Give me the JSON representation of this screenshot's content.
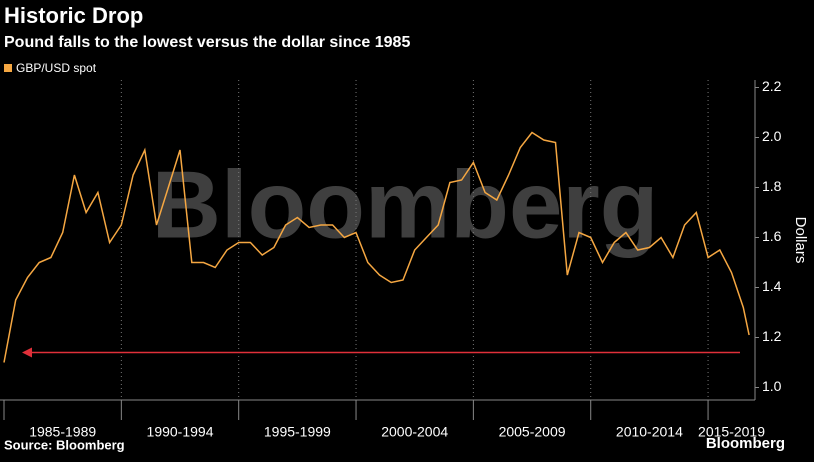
{
  "chart_data": {
    "type": "line",
    "title": "Historic Drop",
    "subtitle": "Pound falls to the lowest versus the dollar since 1985",
    "y_label": "Dollars",
    "watermark": "Bloomberg",
    "source": "Source: Bloomberg",
    "logo": "Bloomberg",
    "x": [
      1985.0,
      1985.5,
      1986.0,
      1986.5,
      1987.0,
      1987.5,
      1988.0,
      1988.5,
      1989.0,
      1989.5,
      1990.0,
      1990.5,
      1991.0,
      1991.5,
      1992.0,
      1992.5,
      1993.0,
      1993.5,
      1994.0,
      1994.5,
      1995.0,
      1995.5,
      1996.0,
      1996.5,
      1997.0,
      1997.5,
      1998.0,
      1998.5,
      1999.0,
      1999.5,
      2000.0,
      2000.5,
      2001.0,
      2001.5,
      2002.0,
      2002.5,
      2003.0,
      2003.5,
      2004.0,
      2004.5,
      2005.0,
      2005.5,
      2006.0,
      2006.5,
      2007.0,
      2007.5,
      2008.0,
      2008.5,
      2009.0,
      2009.5,
      2010.0,
      2010.5,
      2011.0,
      2011.5,
      2012.0,
      2012.5,
      2013.0,
      2013.5,
      2014.0,
      2014.5,
      2015.0,
      2015.5,
      2016.0,
      2016.5,
      2016.75
    ],
    "series": [
      {
        "name": "GBP/USD spot",
        "color": "#f5a742",
        "values": [
          1.1,
          1.35,
          1.44,
          1.5,
          1.52,
          1.62,
          1.85,
          1.7,
          1.78,
          1.58,
          1.65,
          1.85,
          1.95,
          1.65,
          1.8,
          1.95,
          1.5,
          1.5,
          1.48,
          1.55,
          1.58,
          1.58,
          1.53,
          1.56,
          1.65,
          1.68,
          1.64,
          1.65,
          1.65,
          1.6,
          1.62,
          1.5,
          1.45,
          1.42,
          1.43,
          1.55,
          1.6,
          1.65,
          1.82,
          1.83,
          1.9,
          1.78,
          1.75,
          1.85,
          1.96,
          2.02,
          1.99,
          1.98,
          1.45,
          1.62,
          1.6,
          1.5,
          1.58,
          1.62,
          1.55,
          1.56,
          1.6,
          1.52,
          1.65,
          1.7,
          1.52,
          1.55,
          1.46,
          1.32,
          1.21
        ]
      }
    ],
    "arrow": {
      "y": 1.14,
      "color": "#e0303a"
    },
    "xlim": [
      1985,
      2017
    ],
    "xticks": [
      {
        "value": 1985,
        "label": "1985-1989"
      },
      {
        "value": 1990,
        "label": "1990-1994"
      },
      {
        "value": 1995,
        "label": "1995-1999"
      },
      {
        "value": 2000,
        "label": "2000-2004"
      },
      {
        "value": 2005,
        "label": "2005-2009"
      },
      {
        "value": 2010,
        "label": "2010-2014"
      },
      {
        "value": 2015,
        "label": "2015-2019"
      }
    ],
    "ylim": [
      0.95,
      2.23
    ],
    "yticks": [
      {
        "value": 1.0,
        "label": "1.0"
      },
      1.2,
      1.4,
      1.6,
      1.8,
      {
        "value": 2.0,
        "label": "2.0"
      },
      2.2
    ],
    "grid": true,
    "legend": "top-left"
  }
}
